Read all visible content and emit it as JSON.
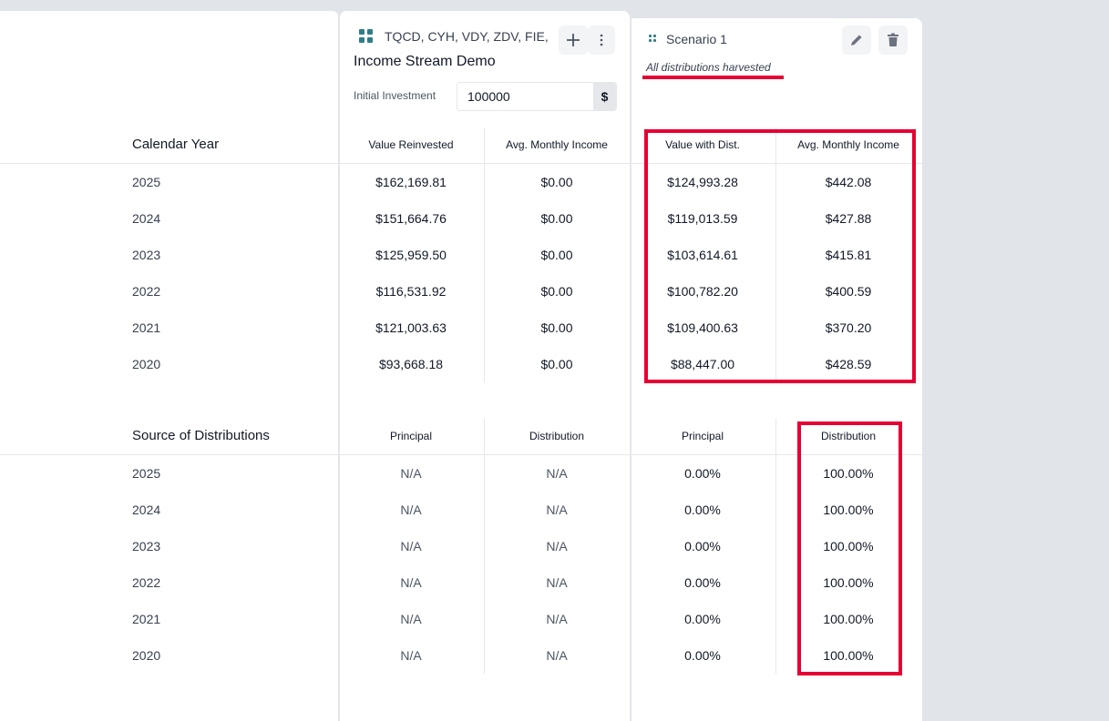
{
  "portfolio": {
    "tickers": "TQCD, CYH, VDY, ZDV, FIE, HXS",
    "title": "Income Stream Demo",
    "initial_investment_label": "Initial Investment",
    "initial_investment_value": "100000",
    "currency_suffix": "$"
  },
  "scenario": {
    "title": "Scenario 1",
    "description": "All distributions harvested"
  },
  "highlight_color": "#e60033",
  "calendar": {
    "label": "Calendar Year",
    "headers": [
      "Value Reinvested",
      "Avg. Monthly Income",
      "Value with Dist.",
      "Avg. Monthly Income"
    ],
    "rows": [
      {
        "year": "2025",
        "values": [
          "$162,169.81",
          "$0.00",
          "$124,993.28",
          "$442.08"
        ]
      },
      {
        "year": "2024",
        "values": [
          "$151,664.76",
          "$0.00",
          "$119,013.59",
          "$427.88"
        ]
      },
      {
        "year": "2023",
        "values": [
          "$125,959.50",
          "$0.00",
          "$103,614.61",
          "$415.81"
        ]
      },
      {
        "year": "2022",
        "values": [
          "$116,531.92",
          "$0.00",
          "$100,782.20",
          "$400.59"
        ]
      },
      {
        "year": "2021",
        "values": [
          "$121,003.63",
          "$0.00",
          "$109,400.63",
          "$370.20"
        ]
      },
      {
        "year": "2020",
        "values": [
          "$93,668.18",
          "$0.00",
          "$88,447.00",
          "$428.59"
        ]
      }
    ]
  },
  "sources": {
    "label": "Source of Distributions",
    "headers": [
      "Principal",
      "Distribution",
      "Principal",
      "Distribution"
    ],
    "rows": [
      {
        "year": "2025",
        "values": [
          "N/A",
          "N/A",
          "0.00%",
          "100.00%"
        ]
      },
      {
        "year": "2024",
        "values": [
          "N/A",
          "N/A",
          "0.00%",
          "100.00%"
        ]
      },
      {
        "year": "2023",
        "values": [
          "N/A",
          "N/A",
          "0.00%",
          "100.00%"
        ]
      },
      {
        "year": "2022",
        "values": [
          "N/A",
          "N/A",
          "0.00%",
          "100.00%"
        ]
      },
      {
        "year": "2021",
        "values": [
          "N/A",
          "N/A",
          "0.00%",
          "100.00%"
        ]
      },
      {
        "year": "2020",
        "values": [
          "N/A",
          "N/A",
          "0.00%",
          "100.00%"
        ]
      }
    ]
  }
}
